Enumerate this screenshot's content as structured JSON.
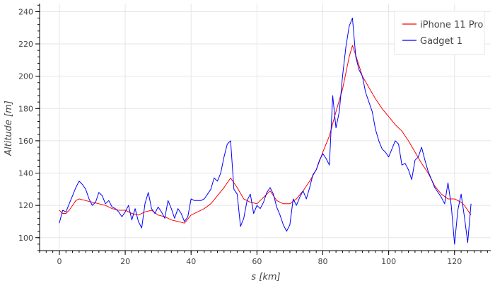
{
  "chart_data": {
    "type": "line",
    "title": "",
    "xlabel": "s [km]",
    "ylabel": "Altitude [m]",
    "xlim": [
      -6,
      131
    ],
    "ylim": [
      92,
      245
    ],
    "x_ticks": [
      0,
      20,
      40,
      60,
      80,
      100,
      120
    ],
    "x_minor_step": 2,
    "y_ticks": [
      100,
      120,
      140,
      160,
      180,
      200,
      220,
      240
    ],
    "y_minor_step": 4,
    "grid": true,
    "legend_position": "top-right",
    "series": [
      {
        "name": "iPhone 11 Pro",
        "color": "#ff0000",
        "x": [
          0,
          1,
          2,
          3,
          4,
          5,
          6,
          8,
          10,
          12,
          14,
          16,
          18,
          20,
          22,
          24,
          26,
          28,
          30,
          32,
          34,
          36,
          38,
          40,
          42,
          44,
          46,
          48,
          50,
          52,
          54,
          56,
          58,
          60,
          62,
          64,
          66,
          68,
          70,
          72,
          74,
          76,
          78,
          80,
          82,
          84,
          86,
          88,
          89,
          90,
          92,
          94,
          96,
          98,
          100,
          102,
          104,
          106,
          108,
          110,
          112,
          114,
          116,
          118,
          120,
          122,
          123,
          124,
          125
        ],
        "y": [
          117,
          115,
          115,
          117,
          120,
          123,
          124,
          123,
          122,
          121,
          120,
          118,
          117,
          117,
          115,
          114,
          116,
          117,
          114,
          113,
          111,
          110,
          109,
          114,
          116,
          118,
          121,
          126,
          131,
          137,
          131,
          124,
          122,
          121,
          125,
          129,
          123,
          121,
          121,
          124,
          129,
          135,
          142,
          153,
          163,
          178,
          192,
          212,
          219,
          213,
          200,
          193,
          186,
          180,
          175,
          170,
          166,
          160,
          153,
          146,
          140,
          132,
          127,
          124,
          124,
          122,
          120,
          117,
          114
        ]
      },
      {
        "name": "Gadget 1",
        "color": "#0000ff",
        "x": [
          0,
          1,
          2,
          3,
          4,
          5,
          6,
          7,
          8,
          9,
          10,
          11,
          12,
          13,
          14,
          15,
          16,
          17,
          18,
          19,
          20,
          21,
          22,
          23,
          24,
          25,
          26,
          27,
          28,
          29,
          30,
          31,
          32,
          33,
          34,
          35,
          36,
          37,
          38,
          39,
          40,
          41,
          42,
          43,
          44,
          45,
          46,
          47,
          48,
          49,
          50,
          51,
          52,
          53,
          54,
          55,
          56,
          57,
          58,
          59,
          60,
          61,
          62,
          63,
          64,
          65,
          66,
          67,
          68,
          69,
          70,
          71,
          72,
          73,
          74,
          75,
          76,
          77,
          78,
          79,
          80,
          81,
          82,
          83,
          84,
          85,
          86,
          87,
          88,
          89,
          90,
          91,
          92,
          93,
          94,
          95,
          96,
          97,
          98,
          99,
          100,
          101,
          102,
          103,
          104,
          105,
          106,
          107,
          108,
          109,
          110,
          111,
          112,
          113,
          114,
          115,
          116,
          117,
          118,
          119,
          120,
          121,
          122,
          123,
          124,
          125
        ],
        "y": [
          109,
          117,
          116,
          121,
          126,
          131,
          135,
          133,
          130,
          124,
          120,
          122,
          128,
          126,
          121,
          123,
          119,
          118,
          116,
          113,
          116,
          120,
          111,
          118,
          110,
          106,
          121,
          128,
          118,
          115,
          119,
          116,
          112,
          123,
          118,
          112,
          118,
          115,
          110,
          113,
          124,
          123,
          123,
          123,
          124,
          127,
          130,
          137,
          135,
          140,
          150,
          158,
          160,
          130,
          127,
          107,
          112,
          123,
          127,
          115,
          120,
          118,
          122,
          128,
          131,
          127,
          119,
          114,
          108,
          104,
          108,
          124,
          120,
          125,
          129,
          124,
          131,
          139,
          142,
          148,
          152,
          149,
          145,
          188,
          168,
          178,
          200,
          218,
          231,
          236,
          212,
          204,
          200,
          190,
          184,
          178,
          167,
          160,
          155,
          153,
          150,
          155,
          160,
          158,
          145,
          146,
          142,
          136,
          148,
          150,
          156,
          148,
          141,
          136,
          131,
          128,
          125,
          121,
          134,
          120,
          96,
          117,
          127,
          113,
          97,
          121
        ]
      }
    ]
  }
}
